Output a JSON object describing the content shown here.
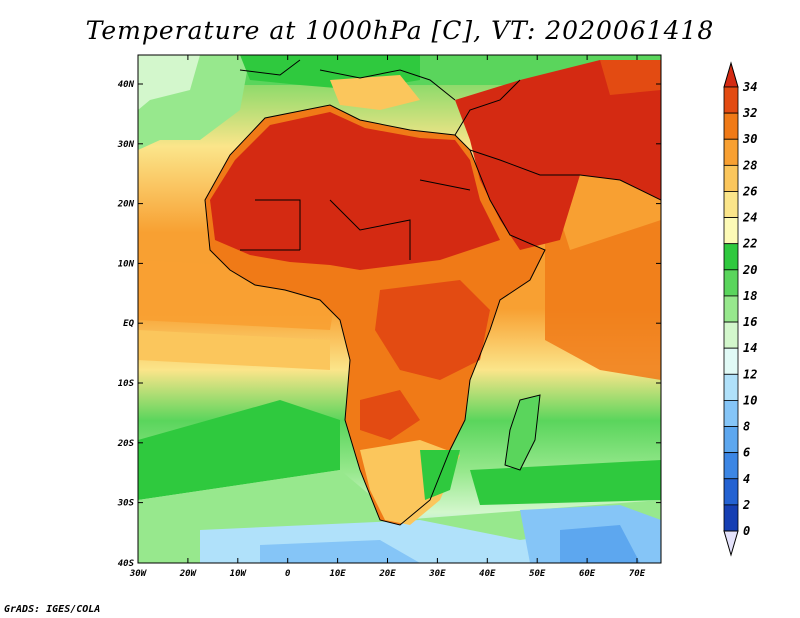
{
  "title": "Temperature at 1000hPa [C], VT: 2020061418",
  "credit": "GrADS: IGES/COLA",
  "map": {
    "lat_ticks": [
      "40N",
      "30N",
      "20N",
      "10N",
      "EQ",
      "10S",
      "20S",
      "30S",
      "40S"
    ],
    "lon_ticks": [
      "30W",
      "20W",
      "10W",
      "0",
      "10E",
      "20E",
      "30E",
      "40E",
      "50E",
      "60E",
      "70E"
    ]
  },
  "colorbar": {
    "labels": [
      "34",
      "32",
      "30",
      "28",
      "26",
      "24",
      "22",
      "20",
      "18",
      "16",
      "14",
      "12",
      "10",
      "8",
      "6",
      "4",
      "2",
      "0"
    ],
    "colors": [
      "#d42a12",
      "#e34b12",
      "#f07a17",
      "#f8a032",
      "#fbc65c",
      "#fbe58a",
      "#fdfab6",
      "#2fc93e",
      "#5ad55c",
      "#97e88d",
      "#d3f7cc",
      "#e1faf6",
      "#b0e1fa",
      "#85c5f7",
      "#5da7ef",
      "#3c86e4",
      "#2462d2",
      "#163fb3",
      "#0b1d7f"
    ]
  }
}
